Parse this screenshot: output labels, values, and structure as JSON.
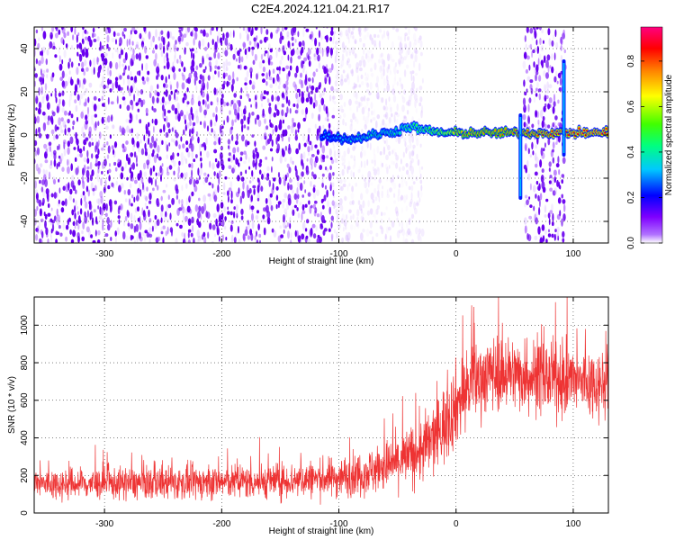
{
  "figure": {
    "title": "C2E4.2024.121.04.21.R17"
  },
  "chart_data": [
    {
      "type": "heatmap",
      "title": "",
      "xlabel": "Height of straight line (km)",
      "ylabel": "Frequency (Hz)",
      "xlim": [
        -360,
        130
      ],
      "ylim": [
        -50,
        50
      ],
      "x_ticks": [
        -300,
        -200,
        -100,
        0,
        100
      ],
      "y_ticks": [
        -40,
        -20,
        0,
        20,
        40
      ],
      "grid": true,
      "colorbar": {
        "label": "Normalized spectral amplitude",
        "range": [
          0.0,
          0.95
        ],
        "ticks": [
          0.0,
          0.2,
          0.4,
          0.6,
          0.8
        ],
        "colormap": [
          "#ffffff",
          "#7f00ff",
          "#0000ff",
          "#00c8ff",
          "#00ff80",
          "#40ff00",
          "#ffff00",
          "#ff8000",
          "#ff0000",
          "#ff0080"
        ]
      },
      "noise_regions": [
        {
          "x_start": -360,
          "x_end": -105,
          "freq_min": -50,
          "freq_max": 50,
          "level": 0.15
        },
        {
          "x_start": -105,
          "x_end": -30,
          "freq_min": -50,
          "freq_max": 50,
          "level": 0.04
        },
        {
          "x_start": 58,
          "x_end": 92,
          "freq_min": -50,
          "freq_max": 50,
          "level": 0.15
        }
      ],
      "signal_ridge": [
        {
          "x": -115,
          "freq": 0,
          "amplitude": 0.3
        },
        {
          "x": -90,
          "freq": -2,
          "amplitude": 0.35
        },
        {
          "x": -70,
          "freq": 0,
          "amplitude": 0.4
        },
        {
          "x": -50,
          "freq": 2,
          "amplitude": 0.4
        },
        {
          "x": -40,
          "freq": 4,
          "amplitude": 0.45
        },
        {
          "x": -25,
          "freq": 2,
          "amplitude": 0.5
        },
        {
          "x": -10,
          "freq": 1,
          "amplitude": 0.6
        },
        {
          "x": 0,
          "freq": 1,
          "amplitude": 0.7
        },
        {
          "x": 20,
          "freq": 1,
          "amplitude": 0.75
        },
        {
          "x": 40,
          "freq": 1,
          "amplitude": 0.75
        },
        {
          "x": 55,
          "freq": 1,
          "amplitude": 0.8
        },
        {
          "x": 100,
          "freq": 1,
          "amplitude": 0.85
        },
        {
          "x": 130,
          "freq": 1,
          "amplitude": 0.85
        }
      ],
      "vertical_features": [
        {
          "x": 55,
          "freq_min": -30,
          "freq_max": 10
        },
        {
          "x": 92,
          "freq_min": -10,
          "freq_max": 35
        }
      ]
    },
    {
      "type": "line",
      "title": "",
      "xlabel": "Height of straight line (km)",
      "ylabel": "SNR (10 * v/v)",
      "xlim": [
        -360,
        130
      ],
      "ylim": [
        0,
        1150
      ],
      "x_ticks": [
        -300,
        -200,
        -100,
        0,
        100
      ],
      "y_ticks": [
        0,
        200,
        400,
        600,
        800,
        1000
      ],
      "grid": true,
      "series": [
        {
          "color": "#ee3333",
          "x": [
            -360,
            -300,
            -250,
            -200,
            -150,
            -100,
            -75,
            -50,
            -30,
            -15,
            0,
            15,
            30,
            50,
            75,
            100,
            130
          ],
          "mean": [
            155,
            155,
            160,
            165,
            170,
            190,
            220,
            270,
            330,
            420,
            580,
            700,
            750,
            740,
            720,
            700,
            690
          ],
          "spread": [
            75,
            75,
            80,
            80,
            85,
            95,
            110,
            130,
            160,
            190,
            200,
            190,
            180,
            175,
            175,
            170,
            170
          ]
        }
      ]
    }
  ]
}
